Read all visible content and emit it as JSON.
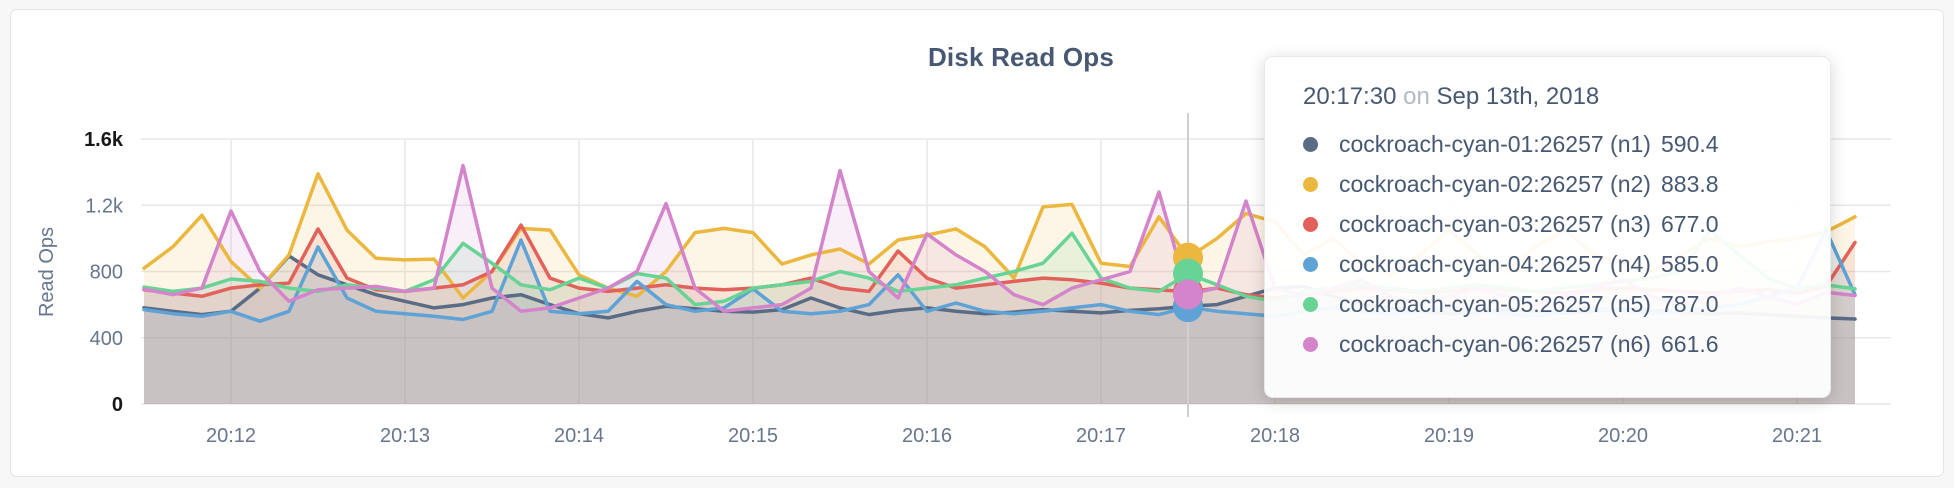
{
  "page": {
    "background": "#f7f7f8",
    "card_background": "#ffffff",
    "title_color": "#475872",
    "axis_text_color": "#67758d",
    "grid_color": "#e7e7e7",
    "hover_line_color": "#cfcfcf"
  },
  "tooltip": {
    "time": "20:17:30",
    "preposition": "on",
    "date": "Sep 13th, 2018",
    "rows": [
      {
        "name": "cockroach-cyan-01:26257 (n1)",
        "value": "590.4",
        "color": "#5A6B85"
      },
      {
        "name": "cockroach-cyan-02:26257 (n2)",
        "value": "883.8",
        "color": "#ECB73E"
      },
      {
        "name": "cockroach-cyan-03:26257 (n3)",
        "value": "677.0",
        "color": "#E2625B"
      },
      {
        "name": "cockroach-cyan-04:26257 (n4)",
        "value": "585.0",
        "color": "#5EA2D6"
      },
      {
        "name": "cockroach-cyan-05:26257 (n5)",
        "value": "787.0",
        "color": "#67D394"
      },
      {
        "name": "cockroach-cyan-06:26257 (n6)",
        "value": "661.6",
        "color": "#D484CB"
      }
    ]
  },
  "chart_data": {
    "type": "area",
    "title": "Disk Read Ops",
    "ylabel": "Read Ops",
    "ylim": [
      0,
      1600
    ],
    "y_tick_values": [
      0,
      400,
      800,
      1200,
      1600
    ],
    "y_tick_labels": [
      "0",
      "400",
      "800",
      "1.2k",
      "1.6k"
    ],
    "x_tick_labels": [
      "20:12",
      "20:13",
      "20:14",
      "20:15",
      "20:16",
      "20:17",
      "20:18",
      "20:19",
      "20:20",
      "20:21"
    ],
    "x_start": "20:11:30",
    "x_interval_seconds": 10,
    "grid": true,
    "legend_position": "tooltip",
    "hover": {
      "time": "20:17:30",
      "date": "Sep 13th, 2018",
      "index": 36
    },
    "series": [
      {
        "name": "cockroach-cyan-01:26257 (n1)",
        "color": "#5A6B85",
        "hover_value": 590.4,
        "values": [
          581,
          560,
          540,
          560,
          700,
          894,
          780,
          720,
          660,
          620,
          580,
          600,
          640,
          660,
          600,
          545,
          520,
          560,
          590,
          575,
          560,
          555,
          570,
          640,
          580,
          540,
          565,
          580,
          560,
          545,
          555,
          570,
          560,
          550,
          565,
          575,
          590.4,
          600,
          650,
          700,
          710,
          650,
          600,
          580,
          560,
          545,
          555,
          570,
          560,
          550,
          560,
          575,
          565,
          555,
          545,
          550,
          540,
          530,
          520,
          513
        ]
      },
      {
        "name": "cockroach-cyan-02:26257 (n2)",
        "color": "#ECB73E",
        "hover_value": 883.8,
        "values": [
          820,
          950,
          1140,
          860,
          700,
          900,
          1390,
          1050,
          880,
          870,
          875,
          640,
          800,
          1060,
          1050,
          780,
          700,
          650,
          800,
          1035,
          1060,
          1035,
          845,
          900,
          936,
          845,
          990,
          1020,
          1057,
          950,
          761,
          1190,
          1205,
          850,
          830,
          1130,
          883.8,
          1000,
          1150,
          1100,
          900,
          1000,
          850,
          780,
          900,
          1050,
          900,
          800,
          950,
          1050,
          900,
          850,
          800,
          900,
          1000,
          950,
          980,
          1000,
          1040,
          1130
        ]
      },
      {
        "name": "cockroach-cyan-03:26257 (n3)",
        "color": "#E2625B",
        "hover_value": 677.0,
        "values": [
          690,
          670,
          650,
          700,
          720,
          730,
          1057,
          760,
          690,
          680,
          700,
          720,
          800,
          1080,
          760,
          700,
          680,
          700,
          720,
          700,
          690,
          700,
          720,
          760,
          700,
          680,
          924,
          760,
          700,
          720,
          740,
          760,
          750,
          730,
          700,
          690,
          677,
          700,
          660,
          640,
          660,
          680,
          700,
          690,
          670,
          680,
          700,
          690,
          680,
          670,
          690,
          700,
          690,
          680,
          670,
          680,
          690,
          670,
          710,
          975
        ]
      },
      {
        "name": "cockroach-cyan-04:26257 (n4)",
        "color": "#5EA2D6",
        "hover_value": 585.0,
        "values": [
          570,
          545,
          530,
          560,
          500,
          560,
          948,
          640,
          560,
          545,
          530,
          510,
          560,
          990,
          560,
          545,
          560,
          740,
          600,
          560,
          580,
          695,
          560,
          545,
          560,
          600,
          780,
          560,
          610,
          560,
          545,
          560,
          580,
          600,
          560,
          540,
          585,
          560,
          545,
          530,
          560,
          580,
          560,
          545,
          560,
          580,
          560,
          545,
          530,
          560,
          580,
          560,
          545,
          560,
          580,
          600,
          650,
          700,
          1050,
          660
        ]
      },
      {
        "name": "cockroach-cyan-05:26257 (n5)",
        "color": "#67D394",
        "hover_value": 787.0,
        "values": [
          706,
          680,
          700,
          755,
          740,
          700,
          680,
          720,
          700,
          680,
          750,
          970,
          850,
          720,
          690,
          760,
          700,
          788,
          760,
          600,
          620,
          700,
          720,
          740,
          800,
          760,
          680,
          700,
          720,
          760,
          800,
          850,
          1031,
          760,
          700,
          680,
          787,
          720,
          650,
          620,
          680,
          700,
          720,
          700,
          680,
          700,
          720,
          700,
          680,
          700,
          720,
          740,
          760,
          800,
          1050,
          900,
          760,
          700,
          720,
          695
        ]
      },
      {
        "name": "cockroach-cyan-06:26257 (n6)",
        "color": "#D484CB",
        "hover_value": 661.6,
        "values": [
          694,
          660,
          700,
          1165,
          800,
          620,
          690,
          700,
          710,
          680,
          700,
          1440,
          700,
          560,
          580,
          640,
          700,
          800,
          1210,
          700,
          560,
          580,
          600,
          700,
          1410,
          800,
          640,
          1027,
          900,
          800,
          660,
          600,
          700,
          750,
          800,
          1280,
          661.6,
          700,
          1225,
          700,
          650,
          700,
          750,
          650,
          600,
          650,
          700,
          650,
          600,
          650,
          700,
          750,
          650,
          600,
          650,
          700,
          650,
          600,
          675,
          655
        ]
      }
    ]
  }
}
